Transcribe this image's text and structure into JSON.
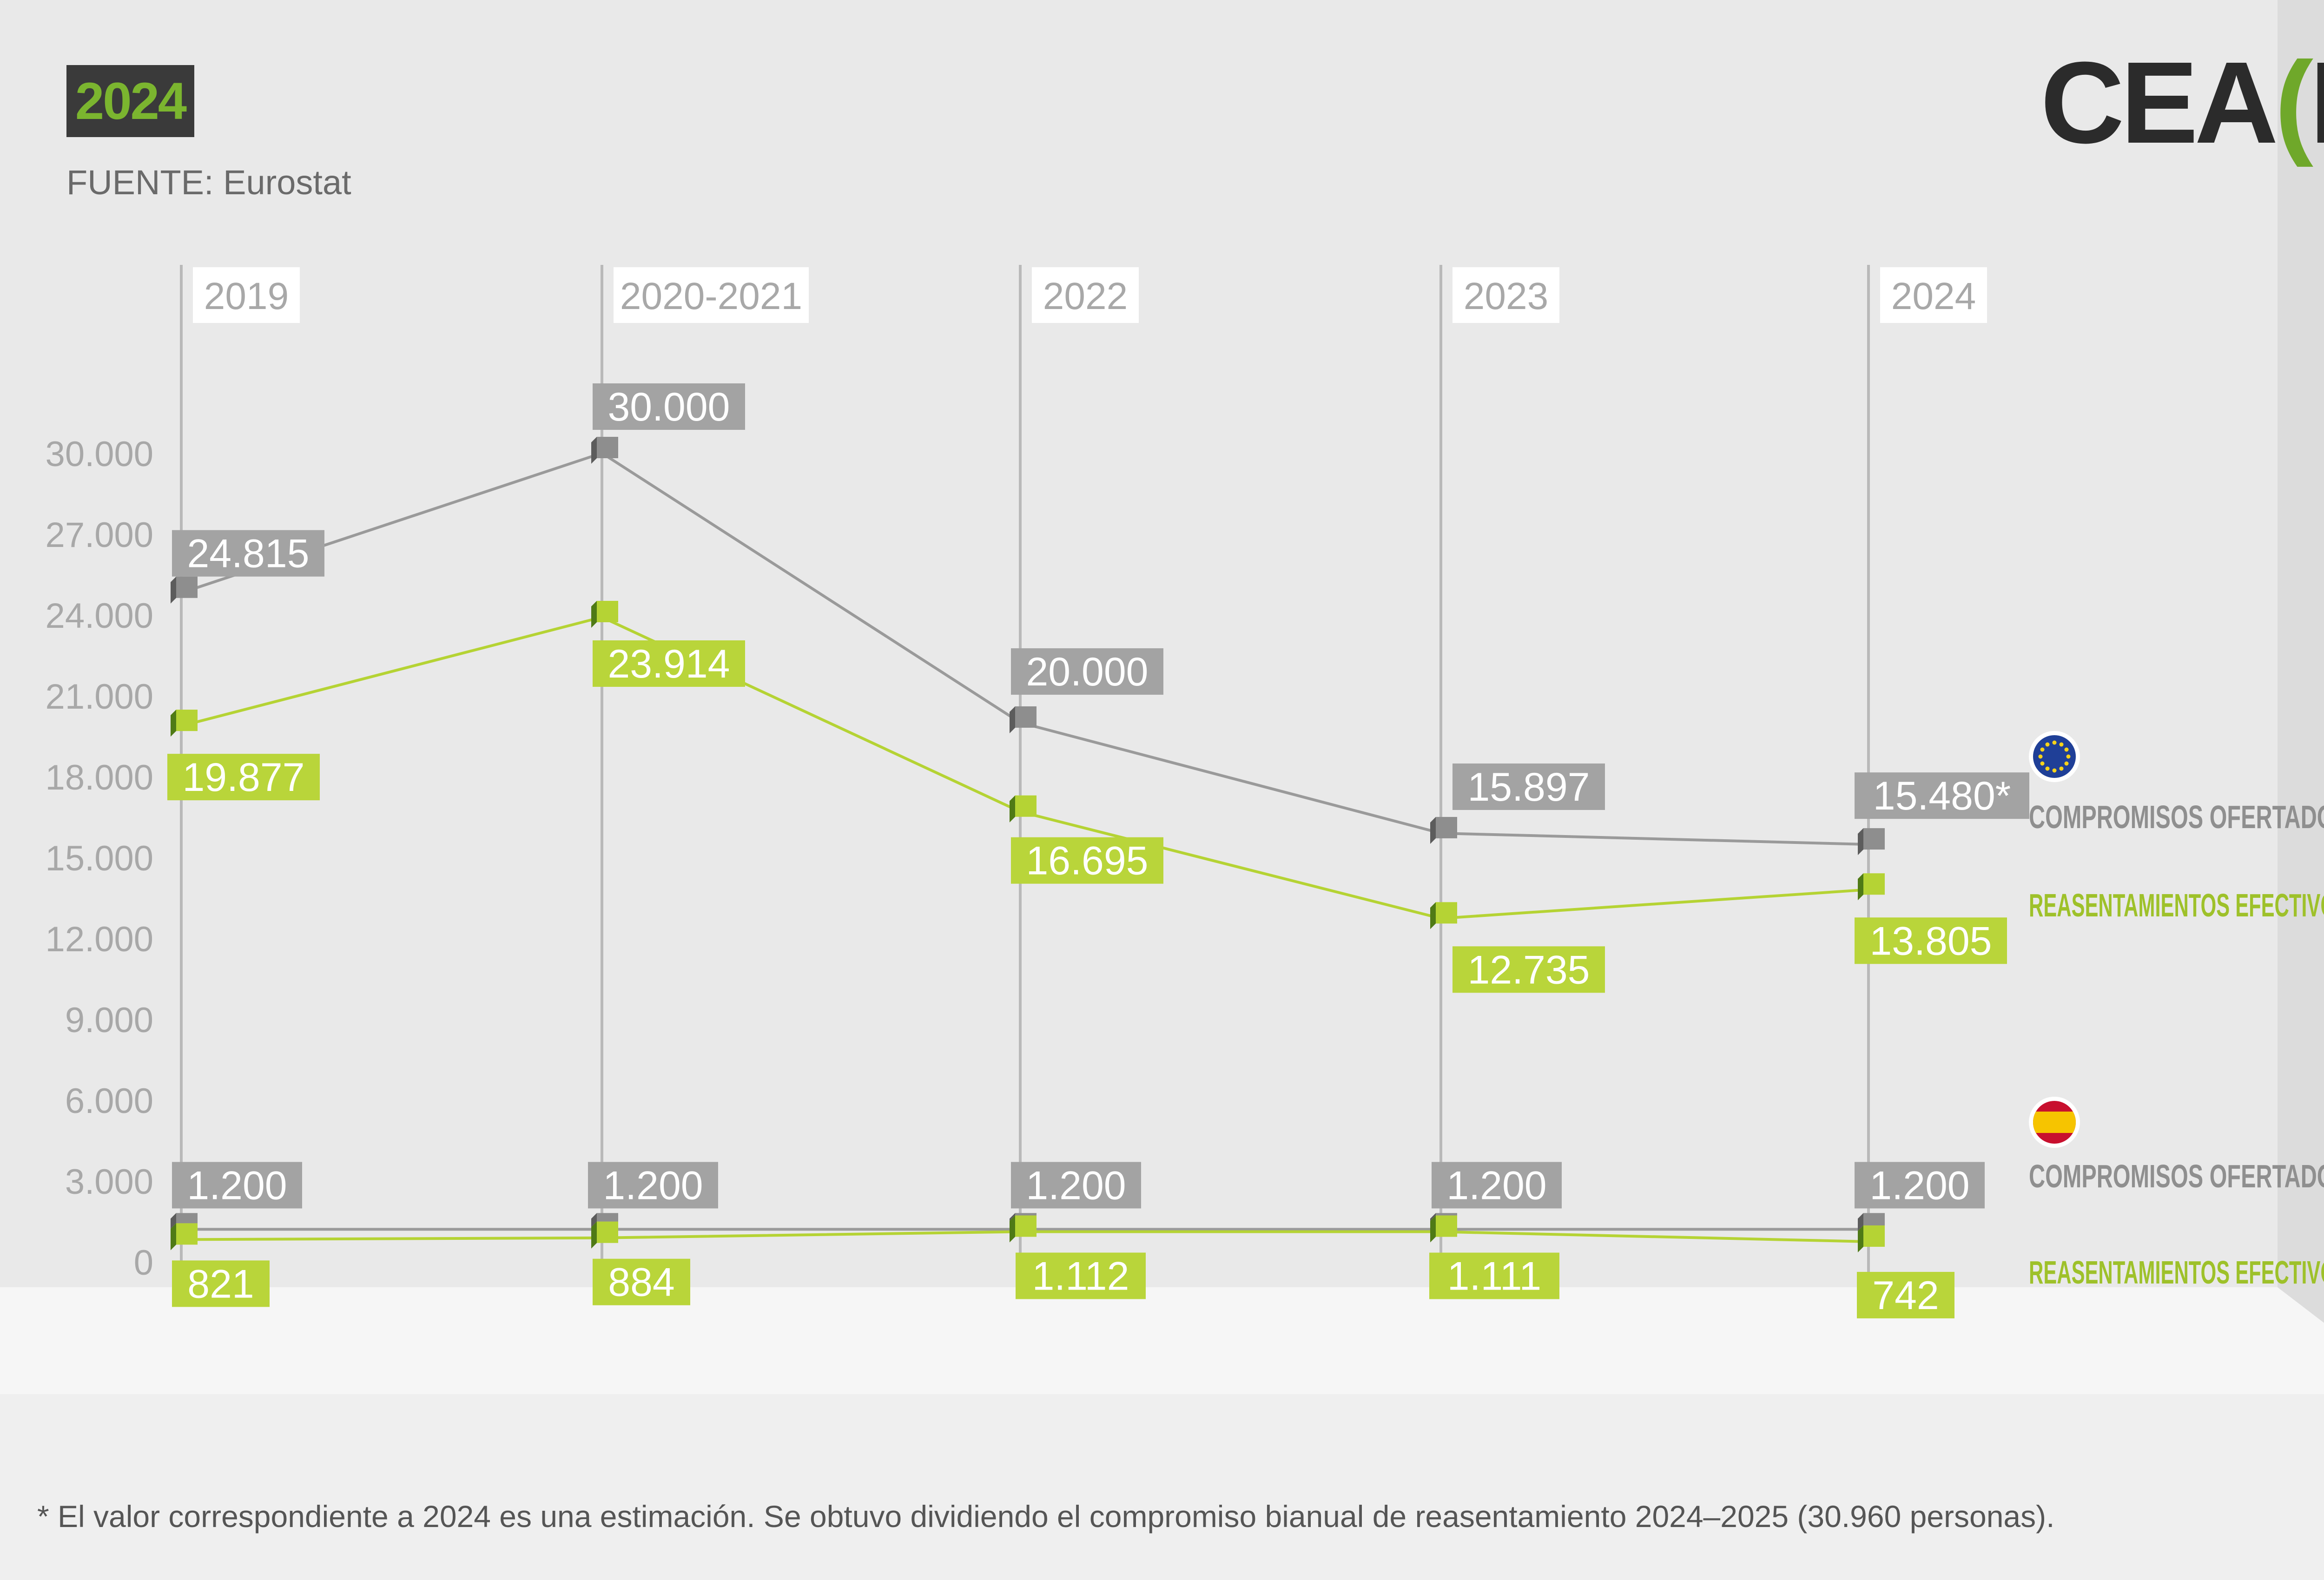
{
  "header": {
    "year_badge": "2024",
    "source": "FUENTE: Eurostat",
    "logo": {
      "part1": "CEA",
      "open": "(",
      "letter": "R",
      "close": ")"
    }
  },
  "footnote": "*  El valor correspondiente a 2024 es una estimación. Se obtuvo dividiendo el compromiso bianual de reasentamiento 2024–2025 (30.960 personas).",
  "legend": {
    "eu": {
      "icon": "eu-flag-icon",
      "offered": "COMPROMISOS OFERTADOS",
      "resettled": "REASENTAMIENTOS EFECTIVOS"
    },
    "spain": {
      "icon": "spain-flag-icon",
      "offered": "COMPROMISOS OFERTADOS",
      "resettled": "REASENTAMIENTOS EFECTIVOS"
    }
  },
  "colors": {
    "gray_series": "#9a9a9a",
    "green_series": "#b5d334",
    "label_gray": "#a3a3a3",
    "label_green": "#b9d53a",
    "axis_text": "#a8a8a8"
  },
  "chart_data": {
    "type": "line",
    "categories": [
      "2019",
      "2020-2021",
      "2022",
      "2023",
      "2024"
    ],
    "ylim": [
      0,
      30000
    ],
    "yticks": [
      0,
      3000,
      6000,
      9000,
      12000,
      15000,
      18000,
      21000,
      24000,
      27000,
      30000
    ],
    "ytick_labels": [
      "0",
      "3.000",
      "6.000",
      "9.000",
      "12.000",
      "15.000",
      "18.000",
      "21.000",
      "24.000",
      "27.000",
      "30.000"
    ],
    "series": [
      {
        "name": "COMPROMISOS OFERTADOS",
        "group": "eu",
        "color": "gray",
        "values": [
          24815,
          30000,
          20000,
          15897,
          15480
        ],
        "labels": [
          "24.815",
          "30.000",
          "20.000",
          "15.897",
          "15.480*"
        ]
      },
      {
        "name": "REASENTAMIENTOS EFECTIVOS",
        "group": "eu",
        "color": "green",
        "values": [
          19877,
          23914,
          16695,
          12735,
          13805
        ],
        "labels": [
          "19.877",
          "23.914",
          "16.695",
          "12.735",
          "13.805"
        ]
      },
      {
        "name": "COMPROMISOS OFERTADOS",
        "group": "spain",
        "color": "gray",
        "values": [
          1200,
          1200,
          1200,
          1200,
          1200
        ],
        "labels": [
          "1.200",
          "1.200",
          "1.200",
          "1.200",
          "1.200"
        ]
      },
      {
        "name": "REASENTAMIENTOS EFECTIVOS",
        "group": "spain",
        "color": "green",
        "values": [
          821,
          884,
          1112,
          1111,
          742
        ],
        "labels": [
          "821",
          "884",
          "1.112",
          "1.111",
          "742"
        ]
      }
    ]
  }
}
